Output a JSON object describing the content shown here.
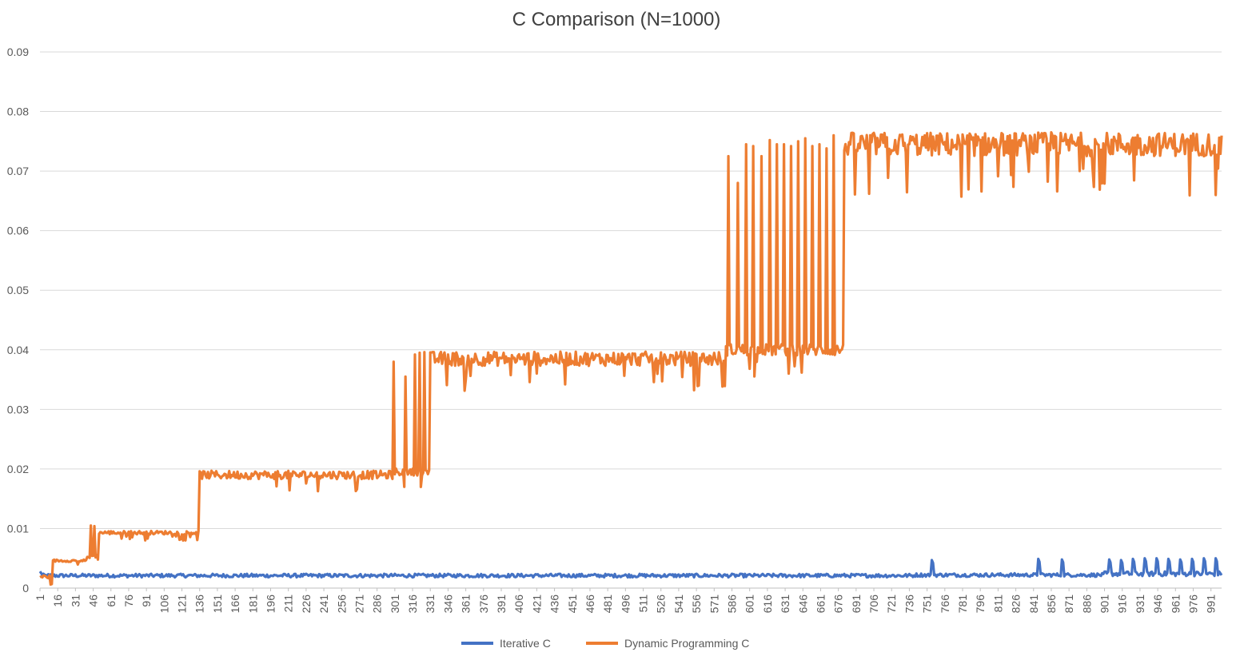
{
  "chart_data": {
    "type": "line",
    "title": "C Comparison (N=1000)",
    "xlabel": "",
    "ylabel": "",
    "ylim": [
      0,
      0.09
    ],
    "yticks": [
      "0",
      "0.01",
      "0.02",
      "0.03",
      "0.04",
      "0.05",
      "0.06",
      "0.07",
      "0.08",
      "0.09"
    ],
    "xlim": [
      1,
      1000
    ],
    "x_tick_start": 1,
    "x_tick_step": 15,
    "x_tick_last": 991,
    "grid": true,
    "legend_position": "bottom",
    "series": [
      {
        "name": "Iterative C",
        "color": "#4472c4",
        "segments": [
          {
            "from": 1,
            "to": 740,
            "base": 0.0021,
            "noise": 0.0003
          },
          {
            "from": 741,
            "to": 900,
            "base": 0.0022,
            "noise": 0.0003
          },
          {
            "from": 901,
            "to": 1000,
            "base": 0.0024,
            "noise": 0.0004
          }
        ],
        "spikes": [
          {
            "x": 1,
            "y": 0.0028
          },
          {
            "x": 755,
            "y": 0.0047
          },
          {
            "x": 845,
            "y": 0.0049
          },
          {
            "x": 865,
            "y": 0.0048
          },
          {
            "x": 905,
            "y": 0.0048
          },
          {
            "x": 915,
            "y": 0.0047
          },
          {
            "x": 925,
            "y": 0.0049
          },
          {
            "x": 935,
            "y": 0.005
          },
          {
            "x": 945,
            "y": 0.005
          },
          {
            "x": 955,
            "y": 0.0049
          },
          {
            "x": 965,
            "y": 0.0048
          },
          {
            "x": 975,
            "y": 0.0049
          },
          {
            "x": 985,
            "y": 0.005
          },
          {
            "x": 995,
            "y": 0.005
          }
        ]
      },
      {
        "name": "Dynamic Programming  C",
        "color": "#ed7d31",
        "segments": [
          {
            "from": 1,
            "to": 11,
            "base": 0.0019,
            "noise": 0.0003
          },
          {
            "from": 12,
            "to": 40,
            "base": 0.0046,
            "noise": 0.0002
          },
          {
            "from": 41,
            "to": 50,
            "base": 0.0052,
            "noise": 0.0005
          },
          {
            "from": 51,
            "to": 135,
            "base": 0.0093,
            "noise": 0.0003
          },
          {
            "from": 136,
            "to": 300,
            "base": 0.019,
            "noise": 0.0007
          },
          {
            "from": 301,
            "to": 330,
            "base": 0.0195,
            "noise": 0.0006
          },
          {
            "from": 331,
            "to": 580,
            "base": 0.0385,
            "noise": 0.0012
          },
          {
            "from": 581,
            "to": 680,
            "base": 0.04,
            "noise": 0.001
          },
          {
            "from": 681,
            "to": 1000,
            "base": 0.0745,
            "noise": 0.002
          }
        ],
        "spikes": [
          {
            "x": 44,
            "y": 0.0105
          },
          {
            "x": 47,
            "y": 0.0104
          },
          {
            "x": 136,
            "y": 0.0196
          },
          {
            "x": 300,
            "y": 0.038
          },
          {
            "x": 310,
            "y": 0.0355
          },
          {
            "x": 318,
            "y": 0.0392
          },
          {
            "x": 322,
            "y": 0.0395
          },
          {
            "x": 326,
            "y": 0.0396
          },
          {
            "x": 583,
            "y": 0.0725
          },
          {
            "x": 591,
            "y": 0.068
          },
          {
            "x": 598,
            "y": 0.0745
          },
          {
            "x": 604,
            "y": 0.0742
          },
          {
            "x": 611,
            "y": 0.0725
          },
          {
            "x": 618,
            "y": 0.0752
          },
          {
            "x": 624,
            "y": 0.0745
          },
          {
            "x": 630,
            "y": 0.0745
          },
          {
            "x": 636,
            "y": 0.0742
          },
          {
            "x": 642,
            "y": 0.075
          },
          {
            "x": 648,
            "y": 0.0755
          },
          {
            "x": 654,
            "y": 0.0742
          },
          {
            "x": 660,
            "y": 0.0745
          },
          {
            "x": 666,
            "y": 0.0738
          },
          {
            "x": 672,
            "y": 0.076
          }
        ]
      }
    ]
  }
}
